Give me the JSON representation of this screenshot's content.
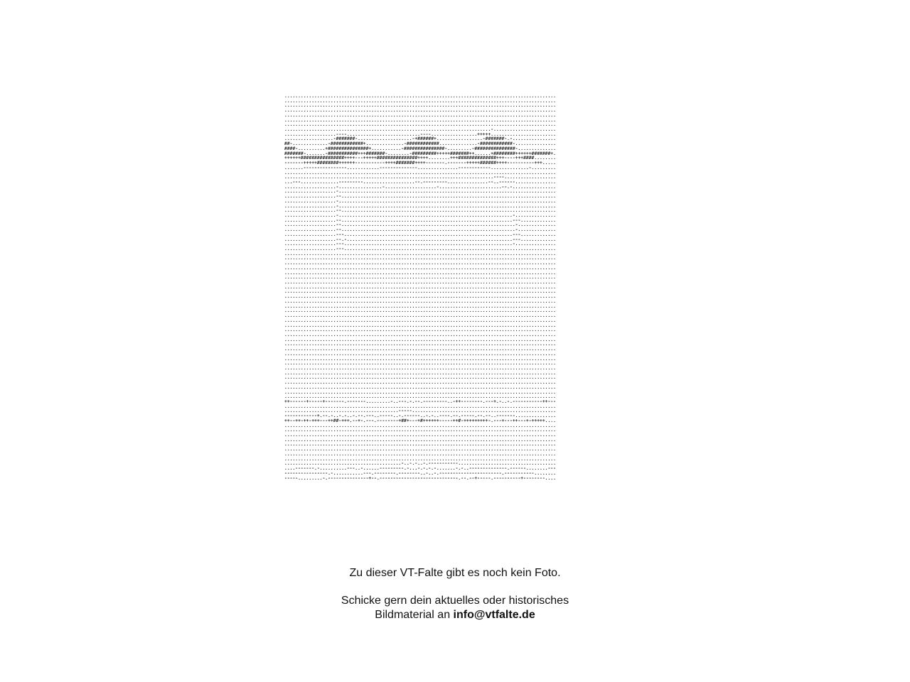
{
  "placeholder": {
    "line1": "Zu dieser VT-Falte gibt es noch kein Foto.",
    "line2": "Schicke gern dein aktuelles oder historisches",
    "line3_prefix": "Bildmaterial an ",
    "email": "info@vtfalte.de"
  },
  "art": {
    "description_icon": "ascii-art-fold-icon",
    "lines": [
      "....................................................................................",
      "....................................................................................",
      "....................................................................................",
      "....................................................................................",
      "....................................................................................",
      "....................................................................................",
      "....................................................................................",
      "............................................................................-.......",
      "...................----...........................----.................+++++......",
      "..................-#######-....................-+######+.................-#######-.-..",
      "##-.............-############+..............-############..............-############-...",
      "####-..........+###############+...........-###############-.........-###############-..",
      "#######-.......-###########+++#######-........-#########+++++#######++......+########++++++#######+",
      "++++++################++++---+++++###############++++........+++##############+++----+++####",
      "-------+++++########++++++-----------++++#######++++-------.-------+++++######++++----------+++",
      ".......----------------............--------------...............------------..............-",
      "....................................................................................",
      ".............................................................................----...",
      "...---..............---------...................--.---------...............--..------",
      "...................-................-...................-.......................--.-..",
      "...................-.................................................................",
      "...................--................................................................",
      "...................-.................................................................",
      "...................-.................................................................",
      "...................--................................................................",
      "...................-................................................................-...",
      "...................--...............................................................---..",
      "...................--................................................................-...",
      "...................--................................................................-...",
      "...................---..............................................................---..",
      "...................--.-.............................................................---..",
      "...................---..............................................................-...",
      "...................---.................................................................",
      "....................................................................................",
      "....................................................................................",
      "....................................................................................",
      "....................................................................................",
      "....................................................................................",
      "....................................................................................",
      "....................................................................................",
      "....................................................................................",
      "....................................................................................",
      "....................................................................................",
      "....................................................................................",
      "....................................................................................",
      "....................................................................................",
      "....................................................................................",
      "....................................................................................",
      "....................................................................................",
      "....................................................................................",
      "....................................................................................",
      "....................................................................................",
      "....................................................................................",
      "....................................................................................",
      "....................................................................................",
      "....................................................................................",
      "....................................................................................",
      "....................................................................................",
      "....................................................................................",
      "....................................................................................",
      "....................................................................................",
      "....................................................................................",
      "....................................................................................",
      "....................................................................................",
      "++------+-----+-------.-------.........-..---.-.--.---------..-++--------.---+.-..-.-----------++---",
      "....................................................................................",
      "..........................................-----......................................",
      "------------+.--.-..-.-..-.--.---..-----..-.------..-.-..----.--.-----.--.--..-------..",
      "++--++-++-+++---++##-+++.--+-.---.--------+##+---+#++++++-----++#-+++++++++-.---+---++---+-+++++",
      "....................................................................................",
      "....................................................................................",
      "....................................................................................",
      "....................................................................................",
      "....................................................................................",
      "....................................................................................",
      "....................................................................................",
      "....................................................................................",
      "...........................................-..-.-..-.-----------......................",
      "....-------.-..........---..-......---------.-...-.-.-.-.......-.-..--------------.------........---.-.-.-",
      "----------------.-...........---.--------.--------..-..-.-----------------------.-----------",
      "-----.........-.---------------+--.-----------------------------.--.--+-----.----------+--------"
    ]
  }
}
